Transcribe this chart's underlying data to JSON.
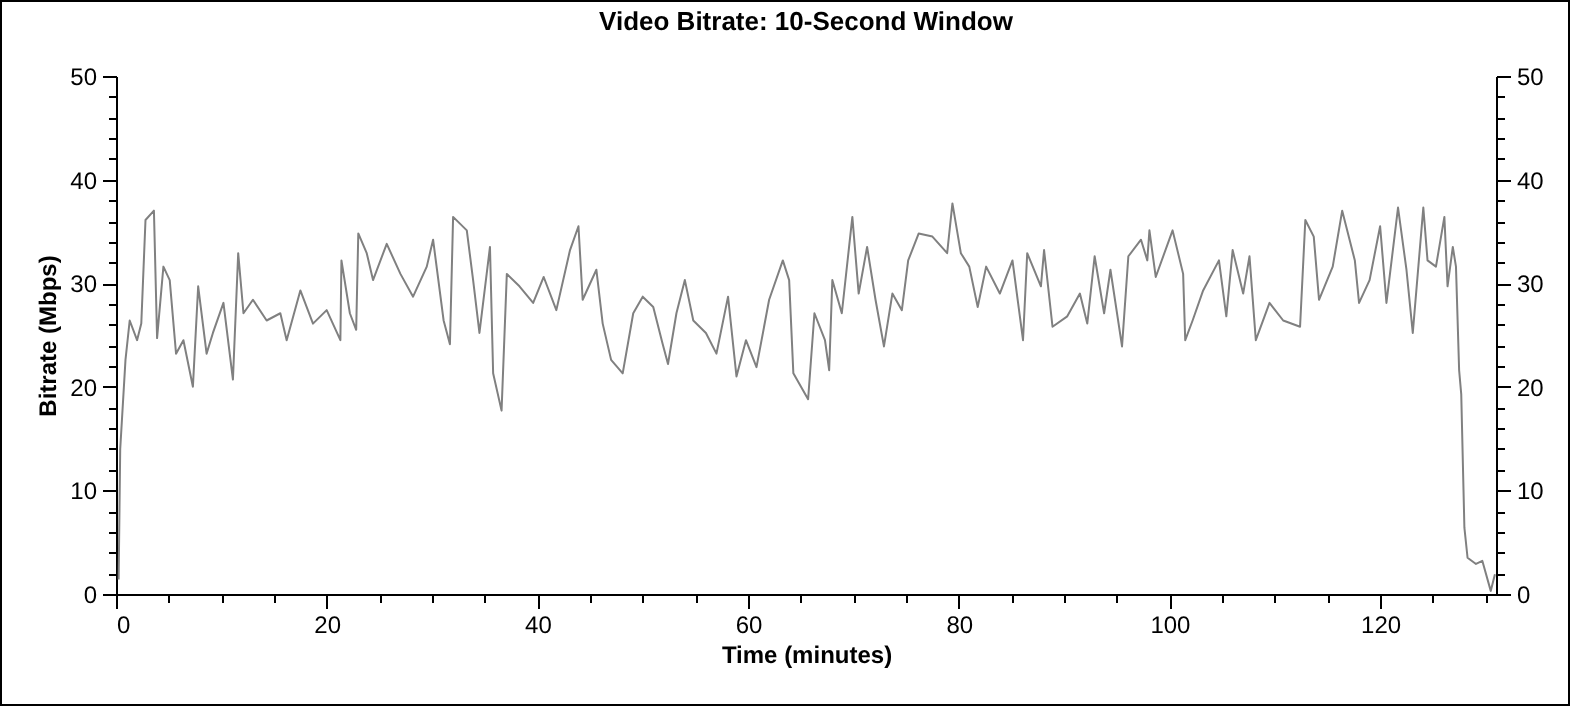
{
  "chart_data": {
    "type": "line",
    "title": "Video Bitrate: 10-Second Window",
    "xlabel": "Time (minutes)",
    "ylabel": "Bitrate (Mbps)",
    "x": [
      0.25,
      0.4,
      0.9,
      1.3,
      2.0,
      2.4,
      2.8,
      3.6,
      3.9,
      4.5,
      5.1,
      5.7,
      6.4,
      7.3,
      7.8,
      8.6,
      9.2,
      10.2,
      11.1,
      11.6,
      12.1,
      13.0,
      14.3,
      15.6,
      16.2,
      17.5,
      18.7,
      20,
      21.3,
      21.4,
      22.2,
      22.8,
      23.0,
      23.8,
      24.4,
      25.7,
      27.0,
      28.2,
      29.5,
      30.1,
      31.1,
      31.7,
      32.0,
      33.3,
      33.9,
      34.5,
      35.5,
      35.8,
      36.6,
      37.1,
      38.3,
      39.6,
      40.6,
      41.8,
      43.1,
      43.9,
      44.3,
      45.6,
      46.2,
      47.0,
      48.1,
      49.1,
      50.0,
      51.0,
      51.9,
      52.4,
      53.2,
      54.0,
      54.8,
      56.0,
      57.0,
      58.1,
      58.9,
      59.8,
      60.8,
      62.0,
      63.3,
      63.9,
      64.3,
      65.7,
      66.3,
      67.3,
      67.7,
      68.0,
      68.9,
      69.9,
      70.5,
      71.3,
      72.1,
      72.9,
      73.7,
      74.6,
      75.2,
      76.2,
      77.5,
      78.9,
      79.4,
      80.2,
      81.0,
      81.8,
      82.6,
      83.9,
      85.1,
      86.1,
      86.5,
      87.8,
      88.1,
      88.9,
      90.3,
      91.5,
      92.2,
      92.9,
      93.8,
      94.4,
      95.5,
      96.1,
      97.3,
      97.9,
      98.1,
      98.7,
      100.3,
      101.3,
      101.5,
      102.2,
      103.2,
      104.7,
      105.4,
      106.0,
      107.0,
      107.6,
      108.2,
      109.5,
      110.8,
      112.4,
      112.9,
      113.7,
      114.2,
      115.5,
      116.4,
      117.6,
      118.0,
      119.0,
      120.0,
      120.6,
      121.7,
      122.5,
      123.1,
      124.1,
      124.5,
      125.3,
      126.1,
      126.4,
      126.9,
      127.2,
      127.5,
      127.7,
      128.0,
      128.3,
      129.1,
      129.7,
      130.5,
      130.9
    ],
    "series": [
      {
        "color": "#808080",
        "values": [
          1.4,
          14,
          22.6,
          26.4,
          24.5,
          26.1,
          36.1,
          37,
          24.7,
          31.6,
          30.3,
          23.2,
          24.5,
          20,
          29.7,
          23.2,
          25.2,
          28.1,
          20.7,
          32.9,
          27.1,
          28.4,
          26.4,
          27.1,
          24.5,
          29.3,
          26.1,
          27.4,
          24.5,
          32.2,
          27.1,
          25.5,
          34.8,
          32.9,
          30.3,
          33.8,
          30.9,
          28.7,
          31.6,
          34.2,
          26.4,
          24.1,
          36.4,
          35.1,
          30.3,
          25.2,
          33.5,
          21.3,
          17.7,
          30.9,
          29.7,
          28.1,
          30.6,
          27.4,
          33.2,
          35.5,
          28.4,
          31.3,
          26.1,
          22.6,
          21.3,
          27.1,
          28.7,
          27.7,
          24.1,
          22.2,
          27.1,
          30.3,
          26.4,
          25.2,
          23.2,
          28.7,
          21.0,
          24.5,
          21.9,
          28.4,
          32.2,
          30.3,
          21.3,
          18.8,
          27.1,
          24.5,
          21.6,
          30.3,
          27.1,
          36.4,
          29.0,
          33.5,
          28.4,
          23.9,
          29.0,
          27.4,
          32.2,
          34.8,
          34.5,
          32.9,
          37.7,
          32.9,
          31.6,
          27.7,
          31.6,
          29.0,
          32.2,
          24.5,
          32.9,
          29.7,
          33.2,
          25.8,
          26.8,
          29.0,
          26.1,
          32.6,
          27.1,
          31.3,
          23.9,
          32.6,
          34.2,
          32.2,
          35.1,
          30.6,
          35.1,
          30.9,
          24.5,
          26.4,
          29.3,
          32.2,
          26.8,
          33.2,
          29.0,
          32.6,
          24.5,
          28.1,
          26.4,
          25.8,
          36.1,
          34.5,
          28.4,
          31.6,
          37,
          32.2,
          28.1,
          30.3,
          35.5,
          28.1,
          37.3,
          31.3,
          25.2,
          37.3,
          32.2,
          31.6,
          36.4,
          29.7,
          33.5,
          31.6,
          21.6,
          19.3,
          6.4,
          3.5,
          2.9,
          3.2,
          0.3,
          1.9
        ]
      }
    ],
    "xlim": [
      0,
      131
    ],
    "xticks": [
      0,
      {
        "value": 5,
        "label": null
      },
      {
        "value": 10,
        "label": null
      },
      {
        "value": 15,
        "label": null
      },
      20,
      {
        "value": 25,
        "label": null
      },
      {
        "value": 30,
        "label": null
      },
      {
        "value": 35,
        "label": null
      },
      40,
      {
        "value": 45,
        "label": null
      },
      {
        "value": 50,
        "label": null
      },
      {
        "value": 55,
        "label": null
      },
      60,
      {
        "value": 65,
        "label": null
      },
      {
        "value": 70,
        "label": null
      },
      {
        "value": 75,
        "label": null
      },
      80,
      {
        "value": 85,
        "label": null
      },
      {
        "value": 90,
        "label": null
      },
      {
        "value": 95,
        "label": null
      },
      100,
      {
        "value": 105,
        "label": null
      },
      {
        "value": 110,
        "label": null
      },
      {
        "value": 115,
        "label": null
      },
      120,
      {
        "value": 125,
        "label": null
      },
      {
        "value": 130,
        "label": null
      }
    ],
    "ylim": [
      0,
      50
    ],
    "yticks": [
      0,
      {
        "value": 2,
        "label": null
      },
      {
        "value": 4,
        "label": null
      },
      {
        "value": 6,
        "label": null
      },
      {
        "value": 8,
        "label": null
      },
      10,
      {
        "value": 12,
        "label": null
      },
      {
        "value": 14,
        "label": null
      },
      {
        "value": 16,
        "label": null
      },
      {
        "value": 18,
        "label": null
      },
      20,
      {
        "value": 22,
        "label": null
      },
      {
        "value": 24,
        "label": null
      },
      {
        "value": 26,
        "label": null
      },
      {
        "value": 28,
        "label": null
      },
      30,
      {
        "value": 32,
        "label": null
      },
      {
        "value": 34,
        "label": null
      },
      {
        "value": 36,
        "label": null
      },
      {
        "value": 38,
        "label": null
      },
      40,
      {
        "value": 42,
        "label": null
      },
      {
        "value": 44,
        "label": null
      },
      {
        "value": 46,
        "label": null
      },
      {
        "value": 48,
        "label": null
      },
      50
    ],
    "y2lim": [
      0,
      50
    ],
    "y2ticks": [
      0,
      {
        "value": 2,
        "label": null
      },
      {
        "value": 4,
        "label": null
      },
      {
        "value": 6,
        "label": null
      },
      {
        "value": 8,
        "label": null
      },
      10,
      {
        "value": 12,
        "label": null
      },
      {
        "value": 14,
        "label": null
      },
      {
        "value": 16,
        "label": null
      },
      {
        "value": 18,
        "label": null
      },
      20,
      {
        "value": 22,
        "label": null
      },
      {
        "value": 24,
        "label": null
      },
      {
        "value": 26,
        "label": null
      },
      {
        "value": 28,
        "label": null
      },
      30,
      {
        "value": 32,
        "label": null
      },
      {
        "value": 34,
        "label": null
      },
      {
        "value": 36,
        "label": null
      },
      {
        "value": 38,
        "label": null
      },
      40,
      {
        "value": 42,
        "label": null
      },
      {
        "value": 44,
        "label": null
      },
      {
        "value": 46,
        "label": null
      },
      {
        "value": 48,
        "label": null
      },
      50
    ]
  }
}
